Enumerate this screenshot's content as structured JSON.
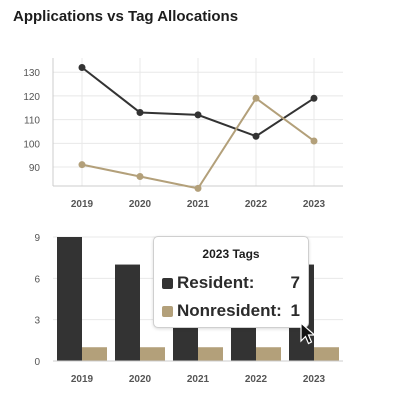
{
  "title": "Applications vs Tag Allocations",
  "colors": {
    "resident": "#333333",
    "nonresident": "#b3a07a",
    "grid": "#e8e8e8",
    "axis": "#cccccc"
  },
  "chart_data": [
    {
      "type": "line",
      "categories": [
        "2019",
        "2020",
        "2021",
        "2022",
        "2023"
      ],
      "series": [
        {
          "values": [
            132,
            113,
            112,
            103,
            119
          ],
          "color": "#333333"
        },
        {
          "values": [
            91,
            86,
            81,
            119,
            101
          ],
          "color": "#b3a07a"
        }
      ],
      "yticks": [
        90,
        100,
        110,
        120,
        130
      ],
      "ylim": [
        82,
        136
      ],
      "grid": true
    },
    {
      "type": "bar",
      "categories": [
        "2019",
        "2020",
        "2021",
        "2022",
        "2023"
      ],
      "series": [
        {
          "name": "Resident",
          "values": [
            9,
            7,
            8,
            9,
            7
          ],
          "color": "#333333"
        },
        {
          "name": "Nonresident",
          "values": [
            1,
            1,
            1,
            1,
            1
          ],
          "color": "#b3a07a"
        }
      ],
      "yticks": [
        0,
        3,
        6,
        9
      ],
      "ylim": [
        0,
        9
      ],
      "grid": true
    }
  ],
  "tooltip": {
    "title": "2023 Tags",
    "rows": [
      {
        "label": "Resident:",
        "value": "7"
      },
      {
        "label": "Nonresident:",
        "value": "1"
      }
    ]
  }
}
